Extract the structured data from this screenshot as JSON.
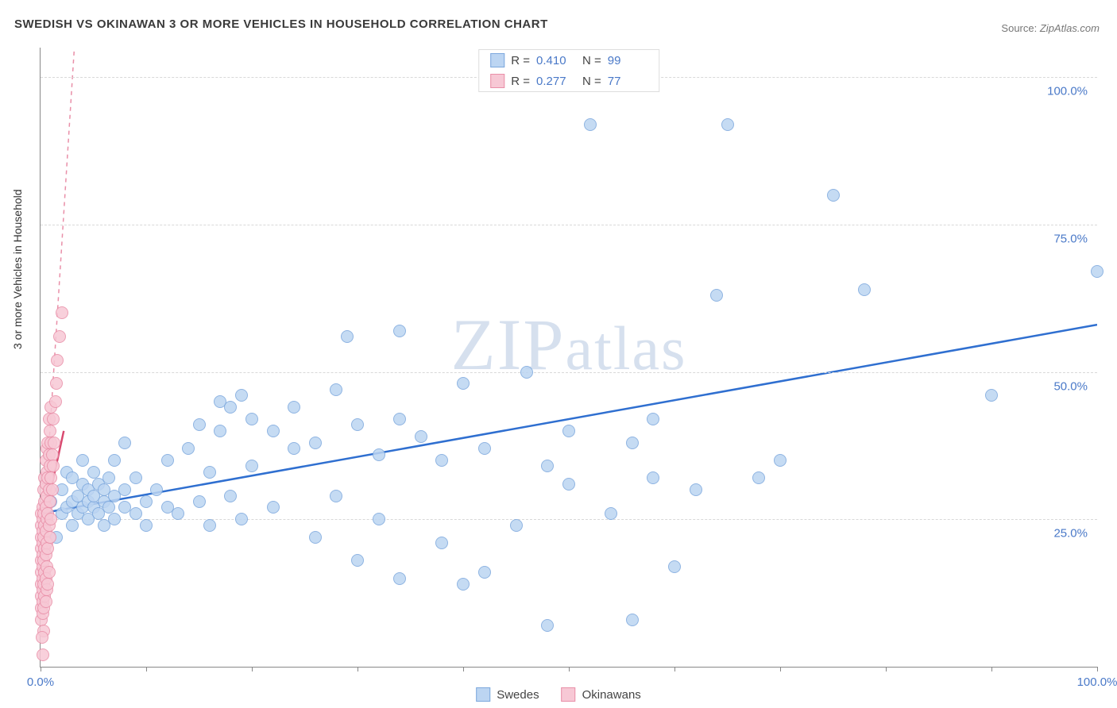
{
  "title": "SWEDISH VS OKINAWAN 3 OR MORE VEHICLES IN HOUSEHOLD CORRELATION CHART",
  "source_label": "Source:",
  "source_value": "ZipAtlas.com",
  "ylabel": "3 or more Vehicles in Household",
  "watermark": "ZIPatlas",
  "chart": {
    "type": "scatter",
    "xlim": [
      0,
      100
    ],
    "ylim": [
      0,
      105
    ],
    "x_ticks": [
      0,
      10,
      20,
      30,
      40,
      50,
      60,
      70,
      80,
      90,
      100
    ],
    "y_gridlines": [
      25,
      50,
      75,
      100
    ],
    "x_tick_labels": {
      "0": "0.0%",
      "100": "100.0%"
    },
    "y_tick_labels": {
      "25": "25.0%",
      "50": "50.0%",
      "75": "75.0%",
      "100": "100.0%"
    },
    "background_color": "#ffffff",
    "grid_color": "#d8d8d8",
    "axis_color": "#888888",
    "label_color": "#4a79c8",
    "title_color": "#3a3a3a",
    "title_fontsize": 15,
    "label_fontsize": 15,
    "marker_radius": 8,
    "marker_stroke": 1.2
  },
  "legend_top": {
    "rows": [
      {
        "swatch_fill": "#bcd5f2",
        "swatch_stroke": "#7ca8dd",
        "r_label": "R =",
        "r_value": "0.410",
        "n_label": "N =",
        "n_value": "99"
      },
      {
        "swatch_fill": "#f7c8d5",
        "swatch_stroke": "#e98fa8",
        "r_label": "R =",
        "r_value": "0.277",
        "n_label": "N =",
        "n_value": "77"
      }
    ]
  },
  "legend_bottom": {
    "items": [
      {
        "swatch_fill": "#bcd5f2",
        "swatch_stroke": "#7ca8dd",
        "label": "Swedes"
      },
      {
        "swatch_fill": "#f7c8d5",
        "swatch_stroke": "#e98fa8",
        "label": "Okinawans"
      }
    ]
  },
  "series": [
    {
      "name": "Swedes",
      "fill": "#bcd5f2",
      "stroke": "#7ca8dd",
      "trend": {
        "x1": 0,
        "y1": 26,
        "x2": 100,
        "y2": 58,
        "color": "#2f6fd0",
        "width": 2.5,
        "dash": "none"
      },
      "points": [
        [
          1,
          28
        ],
        [
          1.5,
          22
        ],
        [
          2,
          26
        ],
        [
          2,
          30
        ],
        [
          2.5,
          27
        ],
        [
          2.5,
          33
        ],
        [
          3,
          24
        ],
        [
          3,
          28
        ],
        [
          3,
          32
        ],
        [
          3.5,
          26
        ],
        [
          3.5,
          29
        ],
        [
          4,
          27
        ],
        [
          4,
          31
        ],
        [
          4,
          35
        ],
        [
          4.5,
          25
        ],
        [
          4.5,
          28
        ],
        [
          4.5,
          30
        ],
        [
          5,
          27
        ],
        [
          5,
          29
        ],
        [
          5,
          33
        ],
        [
          5.5,
          26
        ],
        [
          5.5,
          31
        ],
        [
          6,
          24
        ],
        [
          6,
          28
        ],
        [
          6,
          30
        ],
        [
          6.5,
          27
        ],
        [
          6.5,
          32
        ],
        [
          7,
          25
        ],
        [
          7,
          29
        ],
        [
          7,
          35
        ],
        [
          8,
          27
        ],
        [
          8,
          30
        ],
        [
          8,
          38
        ],
        [
          9,
          26
        ],
        [
          9,
          32
        ],
        [
          10,
          24
        ],
        [
          10,
          28
        ],
        [
          11,
          30
        ],
        [
          12,
          27
        ],
        [
          12,
          35
        ],
        [
          13,
          26
        ],
        [
          14,
          37
        ],
        [
          15,
          28
        ],
        [
          15,
          41
        ],
        [
          16,
          24
        ],
        [
          16,
          33
        ],
        [
          17,
          40
        ],
        [
          17,
          45
        ],
        [
          18,
          29
        ],
        [
          18,
          44
        ],
        [
          19,
          25
        ],
        [
          19,
          46
        ],
        [
          20,
          34
        ],
        [
          20,
          42
        ],
        [
          22,
          27
        ],
        [
          22,
          40
        ],
        [
          24,
          37
        ],
        [
          24,
          44
        ],
        [
          26,
          22
        ],
        [
          26,
          38
        ],
        [
          28,
          29
        ],
        [
          28,
          47
        ],
        [
          29,
          56
        ],
        [
          30,
          18
        ],
        [
          30,
          41
        ],
        [
          32,
          25
        ],
        [
          32,
          36
        ],
        [
          34,
          15
        ],
        [
          34,
          42
        ],
        [
          34,
          57
        ],
        [
          36,
          39
        ],
        [
          38,
          21
        ],
        [
          38,
          35
        ],
        [
          40,
          14
        ],
        [
          40,
          48
        ],
        [
          42,
          16
        ],
        [
          42,
          37
        ],
        [
          45,
          24
        ],
        [
          46,
          50
        ],
        [
          48,
          7
        ],
        [
          48,
          34
        ],
        [
          50,
          31
        ],
        [
          50,
          40
        ],
        [
          52,
          92
        ],
        [
          54,
          26
        ],
        [
          56,
          38
        ],
        [
          58,
          32
        ],
        [
          58,
          42
        ],
        [
          60,
          17
        ],
        [
          62,
          30
        ],
        [
          64,
          63
        ],
        [
          65,
          92
        ],
        [
          68,
          32
        ],
        [
          70,
          35
        ],
        [
          75,
          80
        ],
        [
          78,
          64
        ],
        [
          90,
          46
        ],
        [
          100,
          67
        ],
        [
          56,
          8
        ]
      ]
    },
    {
      "name": "Okinawans",
      "fill": "#f7c8d5",
      "stroke": "#e98fa8",
      "trend": {
        "x1": 0,
        "y1": 15,
        "x2": 3.2,
        "y2": 105,
        "color": "#e98fa8",
        "width": 1.5,
        "dash": "5,5"
      },
      "trend_solid": {
        "x1": 0,
        "y1": 22,
        "x2": 2.2,
        "y2": 40,
        "color": "#d94a70",
        "width": 2.5,
        "dash": "none"
      },
      "points": [
        [
          0.1,
          8
        ],
        [
          0.1,
          10
        ],
        [
          0.1,
          12
        ],
        [
          0.1,
          14
        ],
        [
          0.1,
          16
        ],
        [
          0.1,
          18
        ],
        [
          0.1,
          20
        ],
        [
          0.1,
          22
        ],
        [
          0.1,
          24
        ],
        [
          0.1,
          26
        ],
        [
          0.2,
          9
        ],
        [
          0.2,
          11
        ],
        [
          0.2,
          13
        ],
        [
          0.2,
          15
        ],
        [
          0.2,
          17
        ],
        [
          0.2,
          19
        ],
        [
          0.2,
          21
        ],
        [
          0.2,
          23
        ],
        [
          0.2,
          25
        ],
        [
          0.2,
          27
        ],
        [
          0.3,
          10
        ],
        [
          0.3,
          14
        ],
        [
          0.3,
          18
        ],
        [
          0.3,
          22
        ],
        [
          0.3,
          26
        ],
        [
          0.3,
          30
        ],
        [
          0.4,
          12
        ],
        [
          0.4,
          16
        ],
        [
          0.4,
          20
        ],
        [
          0.4,
          24
        ],
        [
          0.4,
          28
        ],
        [
          0.4,
          32
        ],
        [
          0.5,
          11
        ],
        [
          0.5,
          15
        ],
        [
          0.5,
          19
        ],
        [
          0.5,
          23
        ],
        [
          0.5,
          27
        ],
        [
          0.5,
          31
        ],
        [
          0.5,
          35
        ],
        [
          0.6,
          13
        ],
        [
          0.6,
          17
        ],
        [
          0.6,
          21
        ],
        [
          0.6,
          25
        ],
        [
          0.6,
          29
        ],
        [
          0.6,
          33
        ],
        [
          0.6,
          37
        ],
        [
          0.7,
          14
        ],
        [
          0.7,
          20
        ],
        [
          0.7,
          26
        ],
        [
          0.7,
          32
        ],
        [
          0.7,
          38
        ],
        [
          0.8,
          16
        ],
        [
          0.8,
          24
        ],
        [
          0.8,
          30
        ],
        [
          0.8,
          36
        ],
        [
          0.8,
          42
        ],
        [
          0.9,
          22
        ],
        [
          0.9,
          28
        ],
        [
          0.9,
          34
        ],
        [
          0.9,
          40
        ],
        [
          1.0,
          25
        ],
        [
          1.0,
          32
        ],
        [
          1.0,
          38
        ],
        [
          1.0,
          44
        ],
        [
          1.1,
          30
        ],
        [
          1.1,
          36
        ],
        [
          1.2,
          34
        ],
        [
          1.2,
          42
        ],
        [
          1.3,
          38
        ],
        [
          1.4,
          45
        ],
        [
          1.5,
          48
        ],
        [
          1.6,
          52
        ],
        [
          1.8,
          56
        ],
        [
          2.0,
          60
        ],
        [
          0.2,
          2
        ],
        [
          0.3,
          6
        ],
        [
          0.15,
          5
        ]
      ]
    }
  ]
}
